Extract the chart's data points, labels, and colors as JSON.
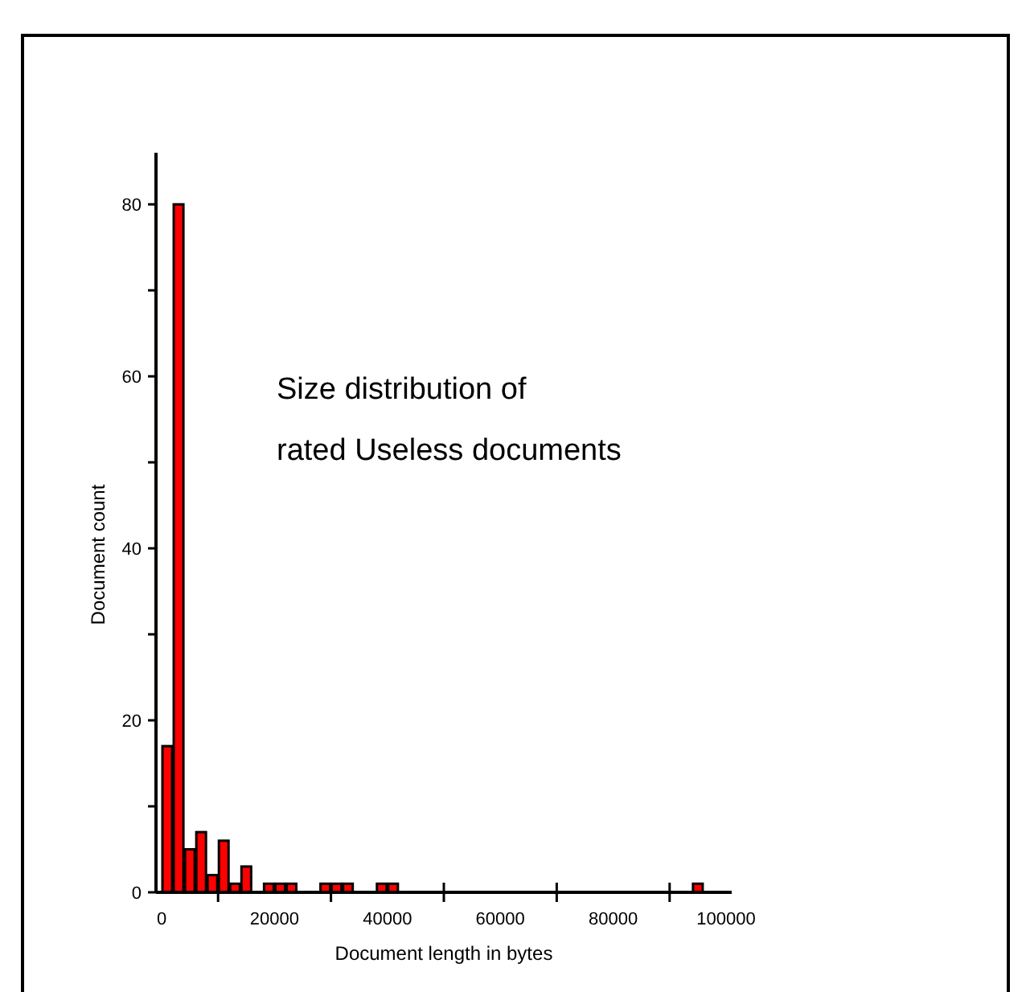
{
  "chart_data": {
    "type": "histogram",
    "xlabel": "Document length in bytes",
    "ylabel": "Document count",
    "annotations": [
      "Size distribution of\nrated Useless documents"
    ],
    "bins": [
      0,
      2000,
      4000,
      6000,
      8000,
      10000,
      12000,
      14000,
      16000,
      18000,
      20000,
      22000,
      24000,
      26000,
      28000,
      30000,
      32000,
      34000,
      36000,
      38000,
      40000,
      42000,
      44000,
      46000,
      48000,
      50000,
      52000,
      54000,
      56000,
      58000,
      60000,
      62000,
      64000,
      66000,
      68000,
      70000,
      72000,
      74000,
      76000,
      78000,
      80000,
      82000,
      84000,
      86000,
      88000,
      90000,
      92000,
      94000,
      96000
    ],
    "values": [
      17,
      80,
      5,
      7,
      2,
      6,
      1,
      3,
      0,
      1,
      1,
      1,
      0,
      0,
      1,
      1,
      1,
      0,
      0,
      1,
      1,
      0,
      0,
      0,
      0,
      0,
      0,
      0,
      0,
      0,
      0,
      0,
      0,
      0,
      0,
      0,
      0,
      0,
      0,
      0,
      0,
      0,
      0,
      0,
      0,
      0,
      0,
      1
    ],
    "color": "#ff0000",
    "xlim": [
      -1000,
      101000
    ],
    "xticks": [
      0,
      {
        "value": 10000,
        "label": null
      },
      20000,
      {
        "value": 30000,
        "label": null
      },
      40000,
      {
        "value": 50000,
        "label": null
      },
      60000,
      {
        "value": 70000,
        "label": null
      },
      80000,
      {
        "value": 90000,
        "label": null
      },
      100000
    ],
    "ylim": [
      0,
      86
    ],
    "yticks": [
      0,
      {
        "value": 10,
        "label": null
      },
      20,
      {
        "value": 30,
        "label": null
      },
      40,
      {
        "value": 50,
        "label": null
      },
      60,
      {
        "value": 70,
        "label": null
      },
      80
    ],
    "grid": false
  }
}
